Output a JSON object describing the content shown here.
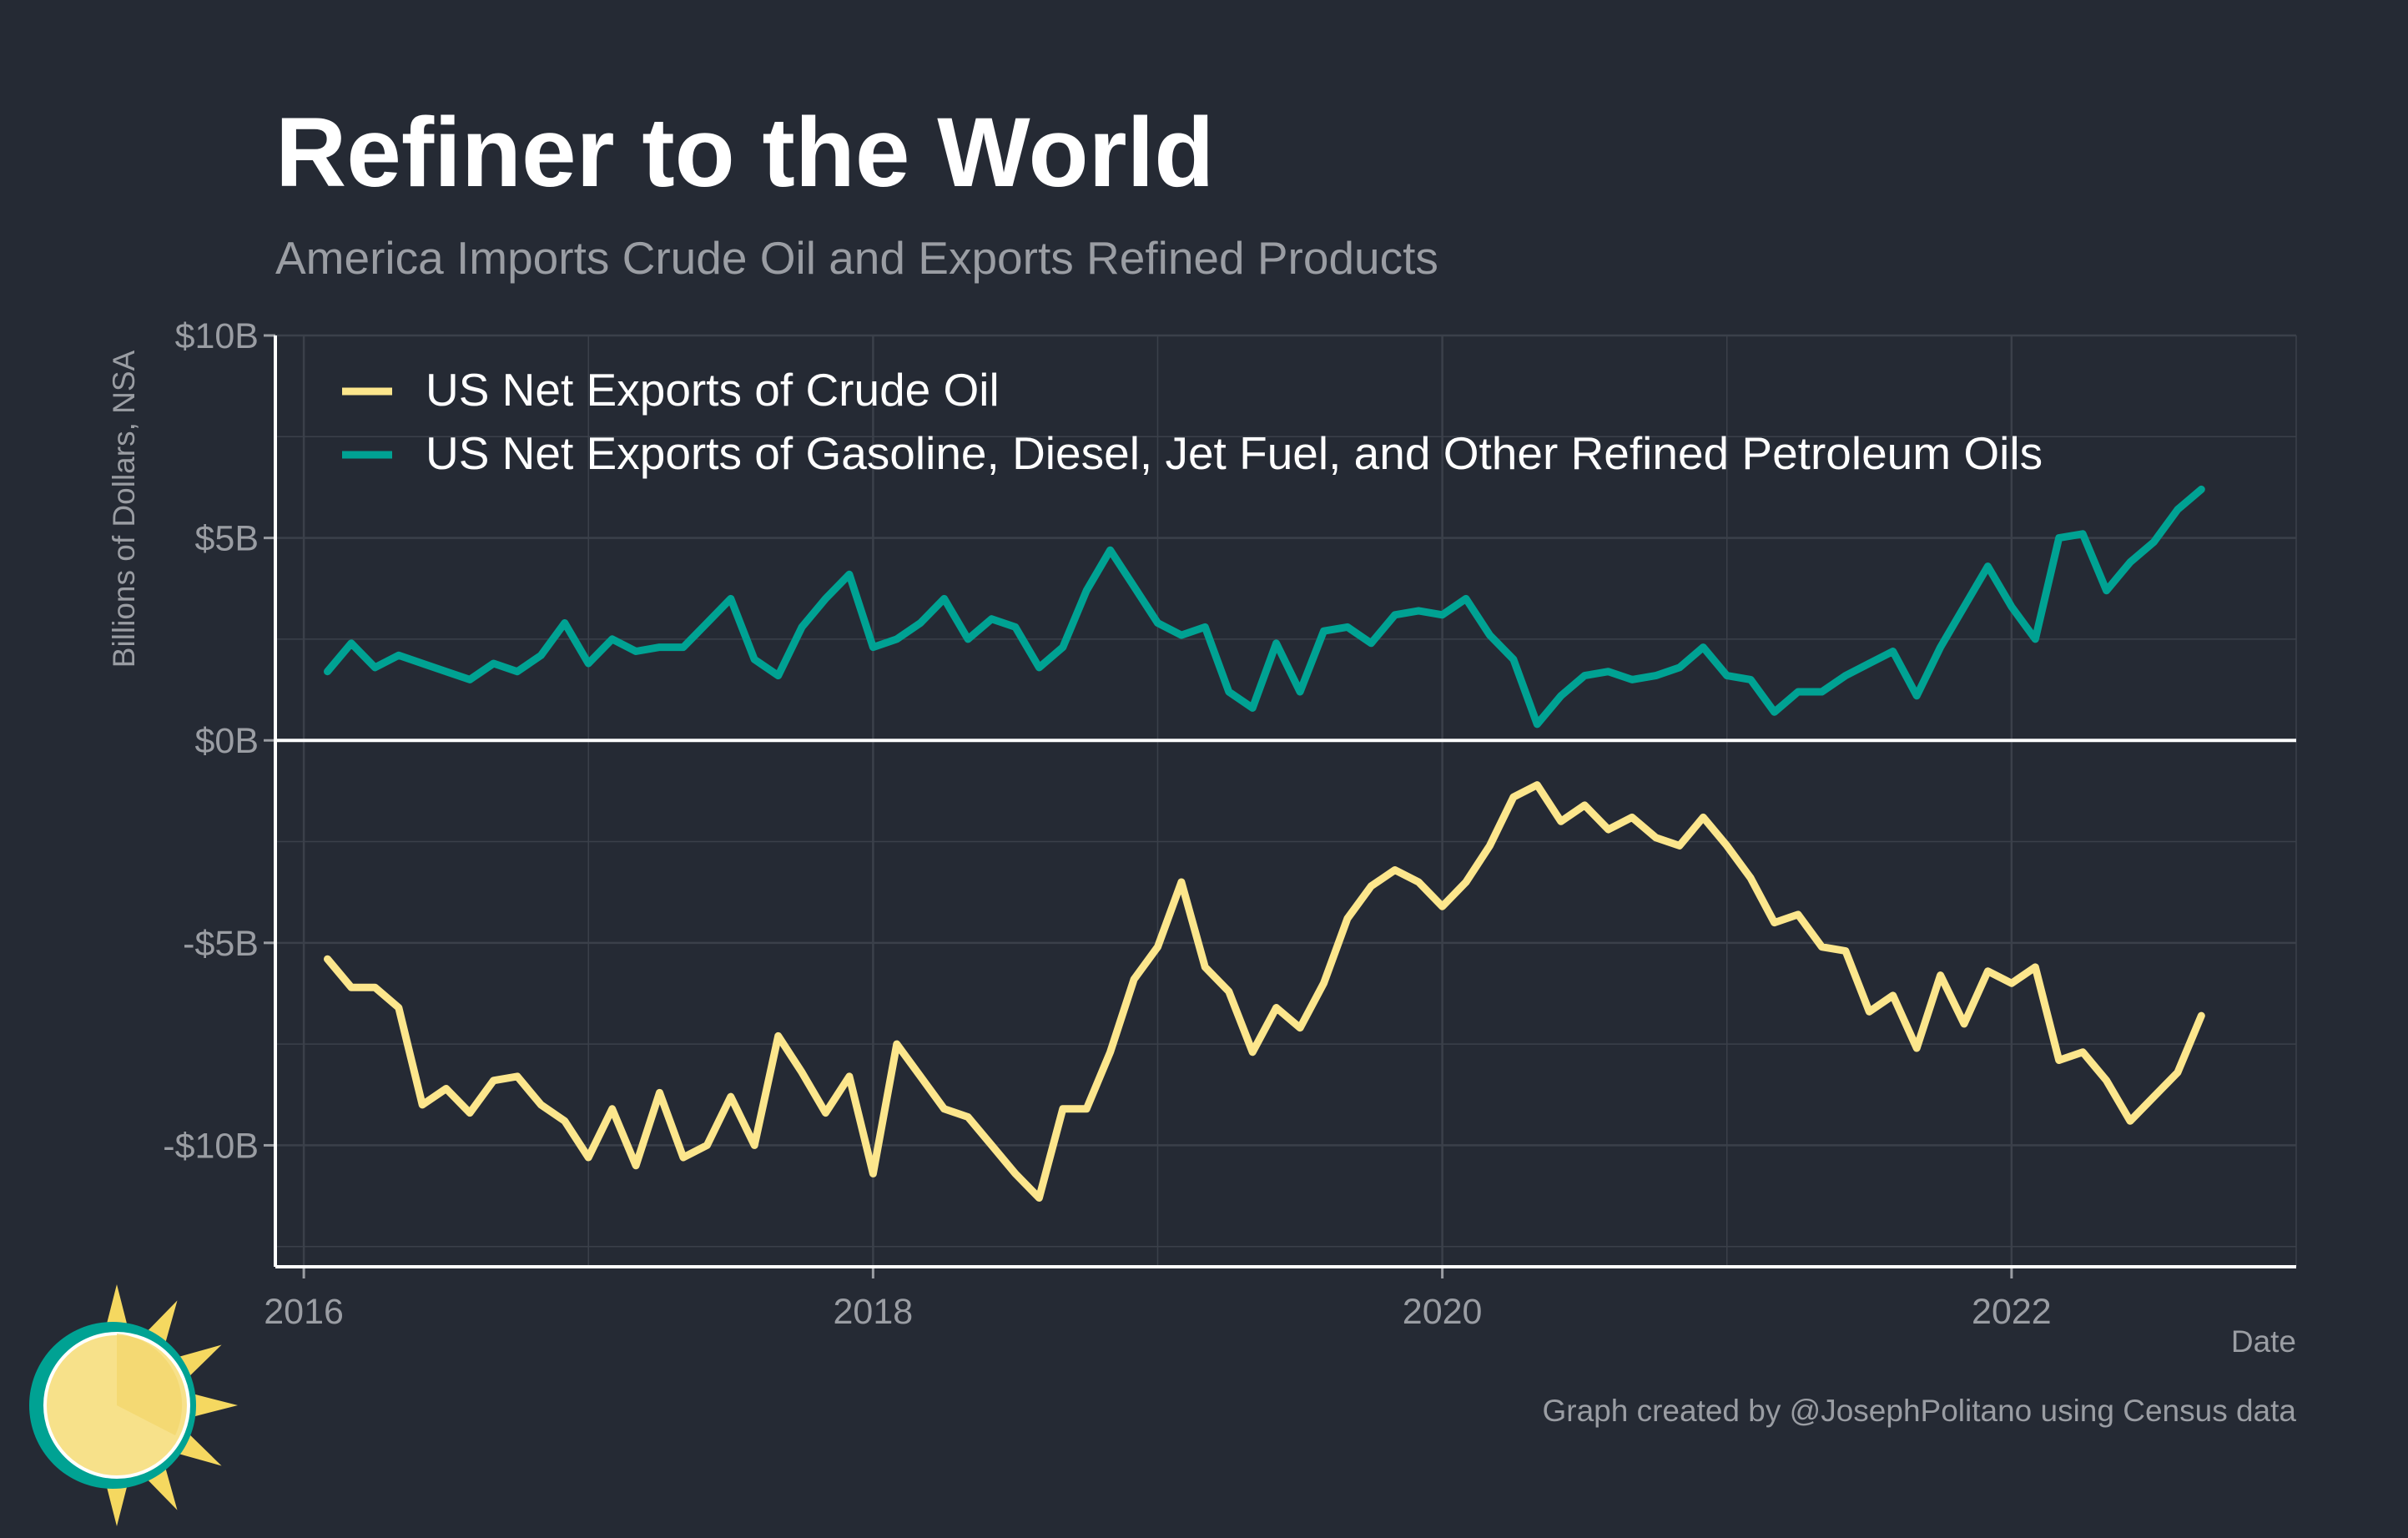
{
  "chart_data": {
    "type": "line",
    "title": "Refiner to the World",
    "subtitle": "America Imports Crude Oil and Exports Refined Products",
    "xlabel": "Date",
    "ylabel": "Billions of Dollars, NSA",
    "xlim": [
      2015.9,
      2023.0
    ],
    "ylim": [
      -13,
      10
    ],
    "x_ticks": [
      {
        "value": 2016,
        "label": "2016"
      },
      {
        "value": 2018,
        "label": "2018"
      },
      {
        "value": 2020,
        "label": "2020"
      },
      {
        "value": 2022,
        "label": "2022"
      }
    ],
    "y_ticks": [
      {
        "value": 10,
        "label": "$10B"
      },
      {
        "value": 5,
        "label": "$5B"
      },
      {
        "value": 0,
        "label": "$0B"
      },
      {
        "value": -5,
        "label": "-$5B"
      },
      {
        "value": -10,
        "label": "-$10B"
      }
    ],
    "grid": true,
    "legend_position": "top-left",
    "x_start": "2016-02",
    "x_step": "month",
    "series": [
      {
        "name": "US Net Exports of Crude Oil",
        "color": "#fce68c",
        "values": [
          -5.4,
          -6.1,
          -6.1,
          -6.6,
          -9.0,
          -8.6,
          -9.2,
          -8.4,
          -8.3,
          -9.0,
          -9.4,
          -10.3,
          -9.1,
          -10.5,
          -8.7,
          -10.3,
          -10.0,
          -8.8,
          -10.0,
          -7.3,
          -8.2,
          -9.2,
          -8.3,
          -10.7,
          -7.5,
          -8.3,
          -9.1,
          -9.3,
          -10.0,
          -10.7,
          -11.3,
          -9.1,
          -9.1,
          -7.7,
          -5.9,
          -5.1,
          -3.5,
          -5.6,
          -6.2,
          -7.7,
          -6.6,
          -7.1,
          -6.0,
          -4.4,
          -3.6,
          -3.2,
          -3.5,
          -4.1,
          -3.5,
          -2.6,
          -1.4,
          -1.1,
          -2.0,
          -1.6,
          -2.2,
          -1.9,
          -2.4,
          -2.6,
          -1.9,
          -2.6,
          -3.4,
          -4.5,
          -4.3,
          -5.1,
          -5.2,
          -6.7,
          -6.3,
          -7.6,
          -5.8,
          -7.0,
          -5.7,
          -6.0,
          -5.6,
          -7.9,
          -7.7,
          -8.4,
          -9.4,
          -8.8,
          -8.2,
          -6.8
        ]
      },
      {
        "name": "US Net Exports of Gasoline, Diesel, Jet Fuel, and Other Refined Petroleum Oils",
        "color": "#00a293",
        "values": [
          1.7,
          2.4,
          1.8,
          2.1,
          1.9,
          1.7,
          1.5,
          1.9,
          1.7,
          2.1,
          2.9,
          1.9,
          2.5,
          2.2,
          2.3,
          2.3,
          2.9,
          3.5,
          2.0,
          1.6,
          2.8,
          3.5,
          4.1,
          2.3,
          2.5,
          2.9,
          3.5,
          2.5,
          3.0,
          2.8,
          1.8,
          2.3,
          3.7,
          4.7,
          3.8,
          2.9,
          2.6,
          2.8,
          1.2,
          0.8,
          2.4,
          1.2,
          2.7,
          2.8,
          2.4,
          3.1,
          3.2,
          3.1,
          3.5,
          2.6,
          2.0,
          0.4,
          1.1,
          1.6,
          1.7,
          1.5,
          1.6,
          1.8,
          2.3,
          1.6,
          1.5,
          0.7,
          1.2,
          1.2,
          1.6,
          1.9,
          2.2,
          1.1,
          2.3,
          3.3,
          4.3,
          3.3,
          2.5,
          5.0,
          5.1,
          3.7,
          4.4,
          4.9,
          5.7,
          6.2
        ]
      }
    ]
  },
  "footer": {
    "credit": "Graph created by @JosephPolitano using Census data"
  },
  "colors": {
    "background": "#252a34",
    "grid": "#3b404a",
    "axis": "#ffffff",
    "muted_text": "#9a9da3",
    "title": "#ffffff",
    "logo_ring": "#00a293",
    "logo_sun": "#f7e18a",
    "logo_rays": "#f5d860"
  },
  "logo": {
    "icon": "sun-logo-icon"
  }
}
